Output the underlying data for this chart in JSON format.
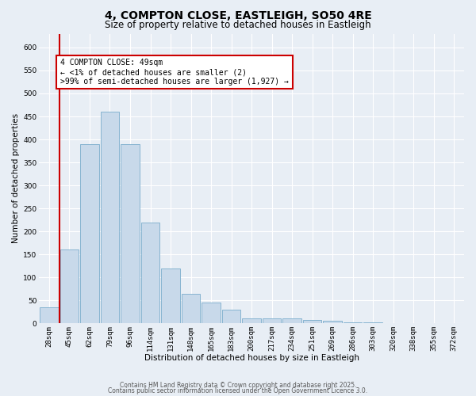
{
  "title1": "4, COMPTON CLOSE, EASTLEIGH, SO50 4RE",
  "title2": "Size of property relative to detached houses in Eastleigh",
  "xlabel": "Distribution of detached houses by size in Eastleigh",
  "ylabel": "Number of detached properties",
  "categories": [
    "28sqm",
    "45sqm",
    "62sqm",
    "79sqm",
    "96sqm",
    "114sqm",
    "131sqm",
    "148sqm",
    "165sqm",
    "183sqm",
    "200sqm",
    "217sqm",
    "234sqm",
    "251sqm",
    "269sqm",
    "286sqm",
    "303sqm",
    "320sqm",
    "338sqm",
    "355sqm",
    "372sqm"
  ],
  "values": [
    35,
    160,
    390,
    460,
    390,
    220,
    120,
    65,
    45,
    30,
    10,
    10,
    10,
    7,
    5,
    2,
    2,
    0,
    0,
    0,
    0
  ],
  "bar_color": "#c8d9ea",
  "bar_edge_color": "#7aadcc",
  "background_color": "#e8eef5",
  "vline_color": "#cc0000",
  "annotation_line1": "4 COMPTON CLOSE: 49sqm",
  "annotation_line2": "← <1% of detached houses are smaller (2)",
  "annotation_line3": ">99% of semi-detached houses are larger (1,927) →",
  "annotation_box_color": "#ffffff",
  "annotation_box_edge_color": "#cc0000",
  "ylim": [
    0,
    630
  ],
  "yticks": [
    0,
    50,
    100,
    150,
    200,
    250,
    300,
    350,
    400,
    450,
    500,
    550,
    600
  ],
  "footer1": "Contains HM Land Registry data © Crown copyright and database right 2025.",
  "footer2": "Contains public sector information licensed under the Open Government Licence 3.0.",
  "title_fontsize": 10,
  "subtitle_fontsize": 8.5,
  "label_fontsize": 7.5,
  "tick_fontsize": 6.5,
  "annotation_fontsize": 7,
  "footer_fontsize": 5.5
}
